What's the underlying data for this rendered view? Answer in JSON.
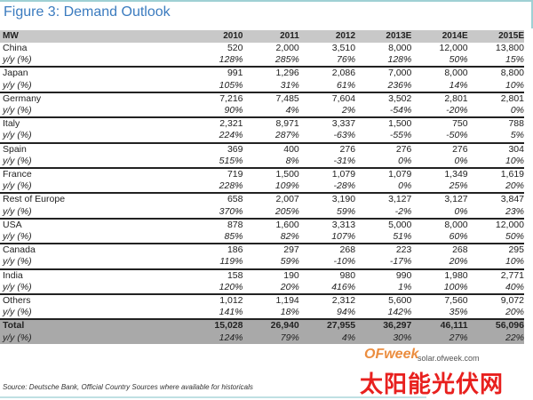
{
  "title": "Figure 3: Demand Outlook",
  "header": [
    "MW",
    "2010",
    "2011",
    "2012",
    "2013E",
    "2014E",
    "2015E"
  ],
  "rows": [
    {
      "name": "China",
      "values": [
        "520",
        "2,000",
        "3,510",
        "8,000",
        "12,000",
        "13,800"
      ],
      "yy_label": "y/y (%)",
      "yy": [
        "128%",
        "285%",
        "76%",
        "128%",
        "50%",
        "15%"
      ]
    },
    {
      "name": "Japan",
      "values": [
        "991",
        "1,296",
        "2,086",
        "7,000",
        "8,000",
        "8,800"
      ],
      "yy_label": "y/y (%)",
      "yy": [
        "105%",
        "31%",
        "61%",
        "236%",
        "14%",
        "10%"
      ]
    },
    {
      "name": "Germany",
      "values": [
        "7,216",
        "7,485",
        "7,604",
        "3,502",
        "2,801",
        "2,801"
      ],
      "yy_label": "y/y (%)",
      "yy": [
        "90%",
        "4%",
        "2%",
        "-54%",
        "-20%",
        "0%"
      ]
    },
    {
      "name": "Italy",
      "values": [
        "2,321",
        "8,971",
        "3,337",
        "1,500",
        "750",
        "788"
      ],
      "yy_label": "y/y (%)",
      "yy": [
        "224%",
        "287%",
        "-63%",
        "-55%",
        "-50%",
        "5%"
      ]
    },
    {
      "name": "Spain",
      "values": [
        "369",
        "400",
        "276",
        "276",
        "276",
        "304"
      ],
      "yy_label": "y/y (%)",
      "yy": [
        "515%",
        "8%",
        "-31%",
        "0%",
        "0%",
        "10%"
      ]
    },
    {
      "name": "France",
      "values": [
        "719",
        "1,500",
        "1,079",
        "1,079",
        "1,349",
        "1,619"
      ],
      "yy_label": "y/y (%)",
      "yy": [
        "228%",
        "109%",
        "-28%",
        "0%",
        "25%",
        "20%"
      ]
    },
    {
      "name": "Rest of Europe",
      "values": [
        "658",
        "2,007",
        "3,190",
        "3,127",
        "3,127",
        "3,847"
      ],
      "yy_label": "y/y (%)",
      "yy": [
        "370%",
        "205%",
        "59%",
        "-2%",
        "0%",
        "23%"
      ]
    },
    {
      "name": "USA",
      "values": [
        "878",
        "1,600",
        "3,313",
        "5,000",
        "8,000",
        "12,000"
      ],
      "yy_label": "y/y (%)",
      "yy": [
        "85%",
        "82%",
        "107%",
        "51%",
        "60%",
        "50%"
      ]
    },
    {
      "name": "Canada",
      "values": [
        "186",
        "297",
        "268",
        "223",
        "268",
        "295"
      ],
      "yy_label": "y/y (%)",
      "yy": [
        "119%",
        "59%",
        "-10%",
        "-17%",
        "20%",
        "10%"
      ]
    },
    {
      "name": "India",
      "values": [
        "158",
        "190",
        "980",
        "990",
        "1,980",
        "2,771"
      ],
      "yy_label": "y/y (%)",
      "yy": [
        "120%",
        "20%",
        "416%",
        "1%",
        "100%",
        "40%"
      ]
    },
    {
      "name": "Others",
      "values": [
        "1,012",
        "1,194",
        "2,312",
        "5,600",
        "7,560",
        "9,072"
      ],
      "yy_label": "y/y (%)",
      "yy": [
        "141%",
        "18%",
        "94%",
        "142%",
        "35%",
        "20%"
      ]
    }
  ],
  "total": {
    "name": "Total",
    "values": [
      "15,028",
      "26,940",
      "27,955",
      "36,297",
      "46,111",
      "56,096"
    ],
    "yy_label": "y/y (%)",
    "yy": [
      "124%",
      "79%",
      "4%",
      "30%",
      "27%",
      "22%"
    ]
  },
  "source": "Source: Deutsche Bank, Official Country Sources where available for historicals",
  "watermark": {
    "brand": "OFweek",
    "site": "solar.ofweek.com",
    "cn": "太阳能光伏网"
  }
}
